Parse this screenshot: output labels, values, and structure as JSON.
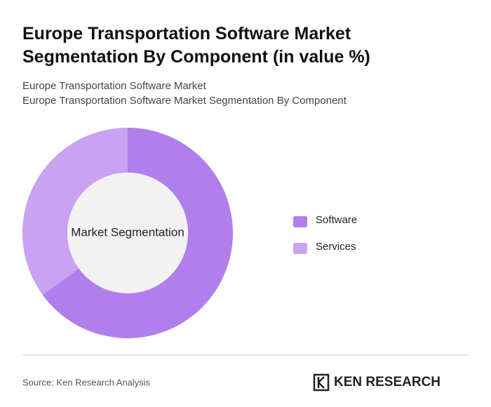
{
  "chart_data": {
    "type": "donut",
    "title": "Europe Transportation Software Market Segmentation By Component (in value %)",
    "subtitles": [
      "Europe Transportation Software Market",
      "Europe Transportation Software Market Segmentation By Component"
    ],
    "center_label": "Market Segmentation",
    "categories": [
      "Software",
      "Services"
    ],
    "values": [
      65,
      35
    ],
    "colors": [
      "#b17feb",
      "#c9a2f1"
    ],
    "hole_color": "#f2f2f2"
  },
  "footer": {
    "source": "Source: Ken Research Analysis",
    "brand": "KEN RESEARCH"
  }
}
